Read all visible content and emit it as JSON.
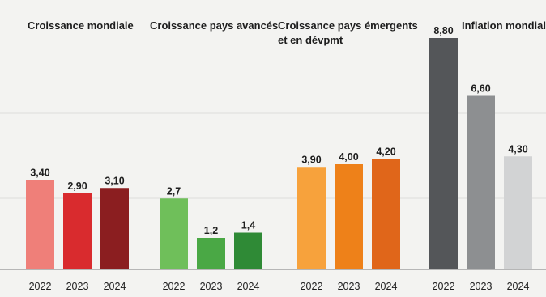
{
  "chart_data": [
    {
      "type": "bar",
      "title": "Croissance mondiale",
      "categories": [
        "2022",
        "2023",
        "2024"
      ],
      "values": [
        3.4,
        2.9,
        3.1
      ],
      "value_labels": [
        "3,40",
        "2,90",
        "3,10"
      ],
      "colors": [
        "#ef7f79",
        "#d92b2e",
        "#8b1e20"
      ],
      "xlabel": "",
      "ylabel": "",
      "ylim": [
        0,
        10
      ],
      "grid": true
    },
    {
      "type": "bar",
      "title": "Croissance pays avancés",
      "categories": [
        "2022",
        "2023",
        "2024"
      ],
      "values": [
        2.7,
        1.2,
        1.4
      ],
      "value_labels": [
        "2,7",
        "1,2",
        "1,4"
      ],
      "colors": [
        "#6fbf5a",
        "#4aa845",
        "#2f8a36"
      ],
      "xlabel": "",
      "ylabel": "",
      "ylim": [
        0,
        10
      ],
      "grid": true
    },
    {
      "type": "bar",
      "title": [
        "Croissance pays émergents",
        "et en dévpmt"
      ],
      "categories": [
        "2022",
        "2023",
        "2024"
      ],
      "values": [
        3.9,
        4.0,
        4.2
      ],
      "value_labels": [
        "3,90",
        "4,00",
        "4,20"
      ],
      "colors": [
        "#f7a23c",
        "#ee8119",
        "#e0661a"
      ],
      "xlabel": "",
      "ylabel": "",
      "ylim": [
        0,
        10
      ],
      "grid": true
    },
    {
      "type": "bar",
      "title": "Inflation mondiale",
      "categories": [
        "2022",
        "2023",
        "2024"
      ],
      "values": [
        8.8,
        6.6,
        4.3
      ],
      "value_labels": [
        "8,80",
        "6,60",
        "4,30"
      ],
      "colors": [
        "#545659",
        "#8d8f91",
        "#d2d3d4"
      ],
      "xlabel": "",
      "ylabel": "",
      "ylim": [
        0,
        10
      ],
      "grid": true
    }
  ],
  "style": {
    "background": "#f3f3f1",
    "grid_color": "#dcdcda",
    "axis_color": "#7a7a7a",
    "text_color": "#1e1e1e"
  }
}
